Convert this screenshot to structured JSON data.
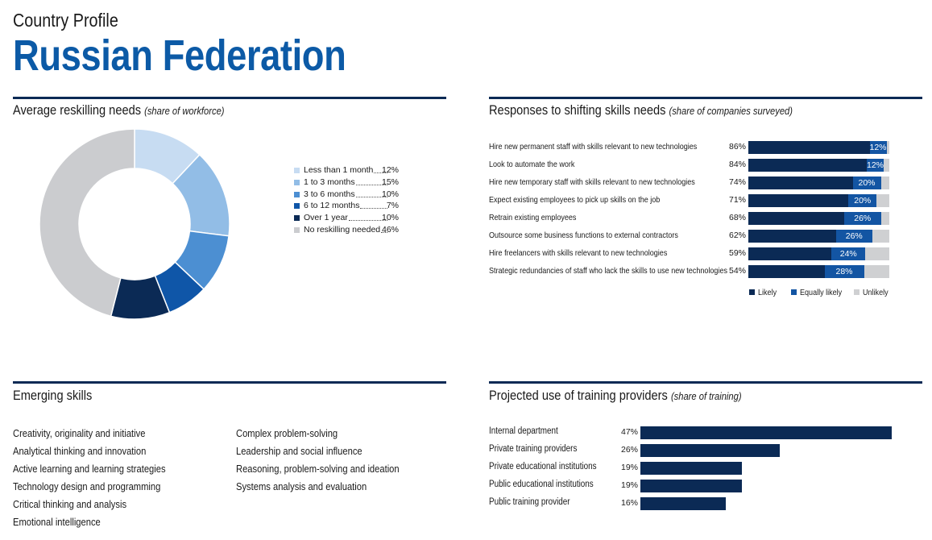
{
  "header": {
    "profile_label": "Country Profile",
    "country": "Russian Federation"
  },
  "colors": {
    "navy": "#0b2a55",
    "title_blue": "#0c5aa6",
    "equally": "#1355a3",
    "unlikely": "#cfd0d2",
    "donut": [
      "#c7dcf2",
      "#92bde6",
      "#4c8fd2",
      "#0f56a8",
      "#0b2a55",
      "#cbcccf"
    ]
  },
  "reskilling": {
    "title": "Average reskilling needs",
    "subtitle": "(share of workforce)"
  },
  "responses": {
    "title": "Responses to shifting skills needs",
    "subtitle": "(share of companies surveyed)"
  },
  "emerging": {
    "title": "Emerging skills",
    "col1": [
      "Creativity, originality and initiative",
      "Analytical thinking and innovation",
      "Active learning and learning strategies",
      "Technology design and programming",
      "Critical thinking and analysis",
      "Emotional intelligence"
    ],
    "col2": [
      "Complex problem-solving",
      "Leadership and social influence",
      "Reasoning, problem-solving and ideation",
      "Systems analysis and evaluation"
    ]
  },
  "training": {
    "title": "Projected use of training providers",
    "subtitle": "(share of training)"
  },
  "chart_data": [
    {
      "type": "pie",
      "title": "Average reskilling needs",
      "subtitle": "(share of workforce)",
      "categories": [
        "Less than 1 month",
        "1 to 3 months",
        "3 to 6 months",
        "6 to 12 months",
        "Over 1 year",
        "No reskilling needed"
      ],
      "values": [
        12,
        15,
        10,
        7,
        10,
        46
      ],
      "value_labels": [
        "12%",
        "15%",
        "10%",
        "7%",
        "10%",
        "46%"
      ],
      "legend": "right"
    },
    {
      "type": "bar",
      "orientation": "horizontal",
      "stacked": true,
      "title": "Responses to shifting skills needs",
      "subtitle": "(share of companies surveyed)",
      "categories": [
        "Hire new permanent staff with skills relevant to new technologies",
        "Look to automate the work",
        "Hire new temporary staff with skills relevant to new technologies",
        "Expect existing employees to pick up skills on the job",
        "Retrain existing employees",
        "Outsource some business functions to external contractors",
        "Hire freelancers with skills relevant to new technologies",
        "Strategic redundancies of staff who lack the skills to use new technologies"
      ],
      "series": [
        {
          "name": "Likely",
          "values": [
            86,
            84,
            74,
            71,
            68,
            62,
            59,
            54
          ]
        },
        {
          "name": "Equally likely",
          "values": [
            12,
            12,
            20,
            20,
            26,
            26,
            24,
            28
          ]
        },
        {
          "name": "Unlikely",
          "values": [
            2,
            4,
            6,
            9,
            6,
            12,
            17,
            18
          ]
        }
      ],
      "likely_labels": [
        "86%",
        "84%",
        "74%",
        "71%",
        "68%",
        "62%",
        "59%",
        "54%"
      ],
      "equally_labels": [
        "12%",
        "12%",
        "20%",
        "20%",
        "26%",
        "26%",
        "24%",
        "28%"
      ],
      "legend_labels": [
        "Likely",
        "Equally likely",
        "Unlikely"
      ],
      "legend": "bottom"
    },
    {
      "type": "bar",
      "orientation": "horizontal",
      "title": "Projected use of training providers",
      "subtitle": "(share of training)",
      "categories": [
        "Internal department",
        "Private training providers",
        "Private educational institutions",
        "Public educational institutions",
        "Public training provider"
      ],
      "values": [
        47,
        26,
        19,
        19,
        16
      ],
      "value_labels": [
        "47%",
        "26%",
        "19%",
        "19%",
        "16%"
      ]
    }
  ]
}
